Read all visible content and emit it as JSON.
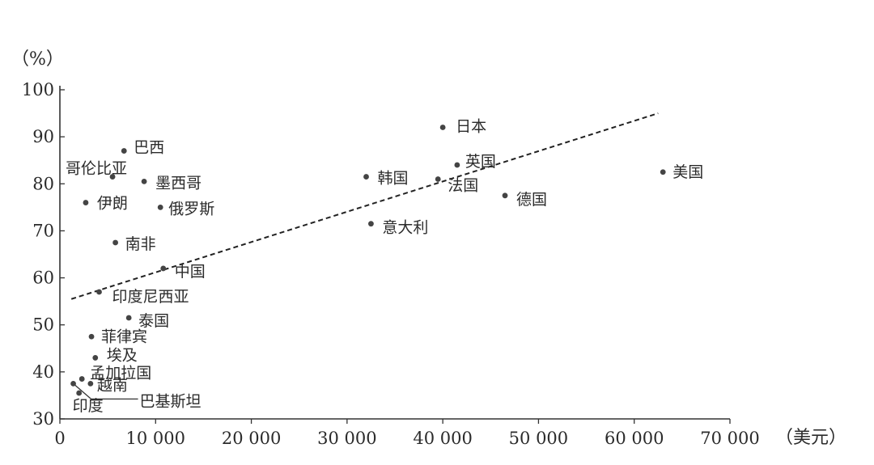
{
  "chart_data": {
    "type": "scatter",
    "title": "",
    "xlabel": "（美元）",
    "ylabel": "（%）",
    "xlim": [
      0,
      70000
    ],
    "ylim": [
      30,
      100
    ],
    "x_ticks": [
      0,
      10000,
      20000,
      30000,
      40000,
      50000,
      60000,
      70000
    ],
    "x_tick_labels": [
      "0",
      "10 000",
      "20 000",
      "30 000",
      "40 000",
      "50 000",
      "60 000",
      "70 000"
    ],
    "y_ticks": [
      30,
      40,
      50,
      60,
      70,
      80,
      90,
      100
    ],
    "y_tick_labels": [
      "30",
      "40",
      "50",
      "60",
      "70",
      "80",
      "90",
      "100"
    ],
    "grid": false,
    "legend": "none",
    "trendline": {
      "style": "dashed",
      "from": [
        1200,
        55.5
      ],
      "to": [
        62500,
        95
      ]
    },
    "points": [
      {
        "label": "巴西",
        "x": 6700,
        "y": 87
      },
      {
        "label": "哥伦比亚",
        "x": 5500,
        "y": 81.5
      },
      {
        "label": "墨西哥",
        "x": 8800,
        "y": 80.5
      },
      {
        "label": "伊朗",
        "x": 2700,
        "y": 76
      },
      {
        "label": "俄罗斯",
        "x": 10500,
        "y": 75
      },
      {
        "label": "南非",
        "x": 5800,
        "y": 67.5
      },
      {
        "label": "中国",
        "x": 10800,
        "y": 62
      },
      {
        "label": "印度尼西亚",
        "x": 4100,
        "y": 57
      },
      {
        "label": "泰国",
        "x": 7200,
        "y": 51.5
      },
      {
        "label": "菲律宾",
        "x": 3300,
        "y": 47.5
      },
      {
        "label": "埃及",
        "x": 3700,
        "y": 43
      },
      {
        "label": "孟加拉国",
        "x": 2300,
        "y": 38.5
      },
      {
        "label": "越南",
        "x": 3200,
        "y": 37.5
      },
      {
        "label": "巴基斯坦",
        "x": 1400,
        "y": 37.5
      },
      {
        "label": "印度",
        "x": 2000,
        "y": 35.5
      },
      {
        "label": "日本",
        "x": 40000,
        "y": 92
      },
      {
        "label": "韩国",
        "x": 32000,
        "y": 81.5
      },
      {
        "label": "英国",
        "x": 41500,
        "y": 84
      },
      {
        "label": "法国",
        "x": 39500,
        "y": 81
      },
      {
        "label": "德国",
        "x": 46500,
        "y": 77.5
      },
      {
        "label": "意大利",
        "x": 32500,
        "y": 71.5
      },
      {
        "label": "美国",
        "x": 63000,
        "y": 82.5
      }
    ]
  }
}
